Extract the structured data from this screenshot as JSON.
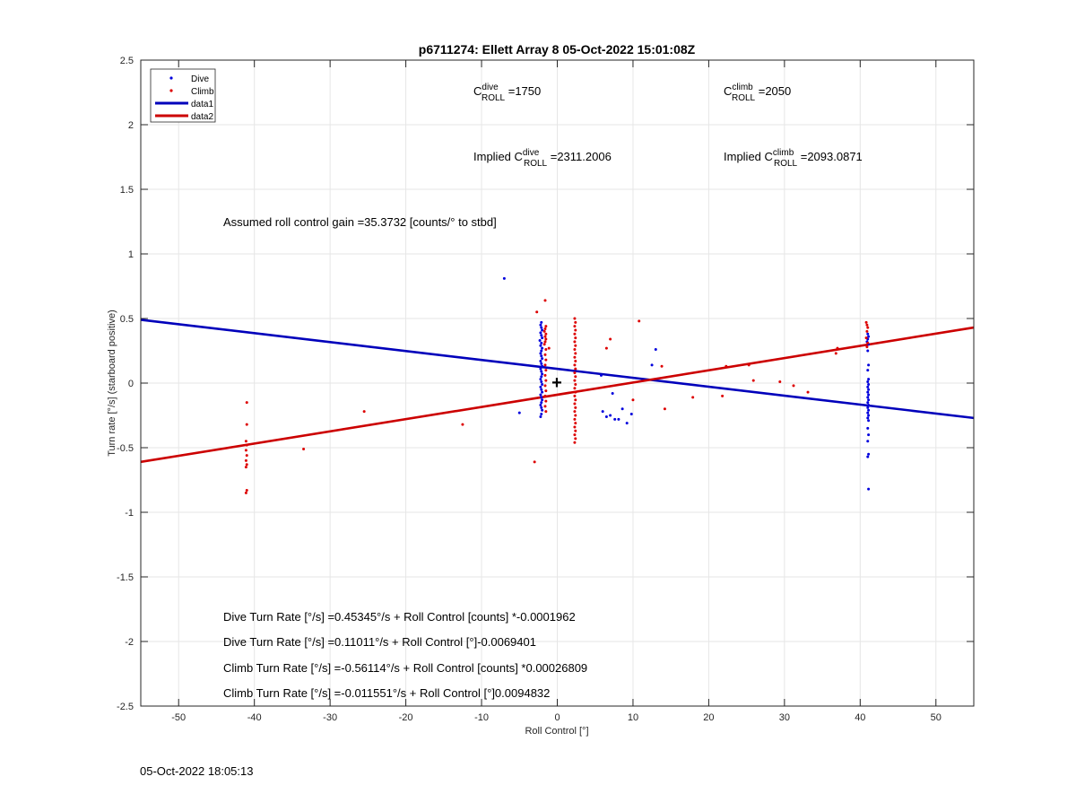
{
  "chart_data": {
    "type": "scatter",
    "title": "p6711274: Ellett Array 8 05-Oct-2022 15:01:08Z",
    "xlabel": "Roll Control [°]",
    "ylabel": "Turn rate [°/s] (starboard positive)",
    "xlim": [
      -55,
      55
    ],
    "ylim": [
      -2.5,
      2.5
    ],
    "xticks": [
      -50,
      -40,
      -30,
      -20,
      -10,
      0,
      10,
      20,
      30,
      40,
      50
    ],
    "yticks": [
      -2.5,
      -2,
      -1.5,
      -1,
      -0.5,
      0,
      0.5,
      1,
      1.5,
      2,
      2.5
    ],
    "grid": true,
    "legend_position": "top-left",
    "legend": [
      "Dive",
      "Climb",
      "data1",
      "data2"
    ],
    "series": [
      {
        "name": "Dive",
        "kind": "points",
        "color": "#0000dd",
        "points": [
          [
            -7,
            0.81
          ],
          [
            -2.1,
            0.47
          ],
          [
            -2.2,
            0.45
          ],
          [
            -2.1,
            0.43
          ],
          [
            -2.0,
            0.41
          ],
          [
            -2.2,
            0.39
          ],
          [
            -2.1,
            0.37
          ],
          [
            -2.0,
            0.35
          ],
          [
            -2.3,
            0.33
          ],
          [
            -2.1,
            0.31
          ],
          [
            -2.2,
            0.29
          ],
          [
            -2.0,
            0.27
          ],
          [
            -2.1,
            0.25
          ],
          [
            -2.2,
            0.23
          ],
          [
            -2.1,
            0.21
          ],
          [
            -2.0,
            0.19
          ],
          [
            -2.2,
            0.17
          ],
          [
            -2.1,
            0.15
          ],
          [
            -2.0,
            0.13
          ],
          [
            -2.2,
            0.11
          ],
          [
            -2.1,
            0.09
          ],
          [
            -2.0,
            0.07
          ],
          [
            -2.1,
            0.05
          ],
          [
            -2.2,
            0.03
          ],
          [
            -2.1,
            0.01
          ],
          [
            -2.0,
            -0.01
          ],
          [
            -2.2,
            -0.03
          ],
          [
            -2.1,
            -0.05
          ],
          [
            -2.0,
            -0.07
          ],
          [
            -2.2,
            -0.09
          ],
          [
            -2.1,
            -0.11
          ],
          [
            -2.0,
            -0.13
          ],
          [
            -2.1,
            -0.15
          ],
          [
            -2.2,
            -0.17
          ],
          [
            -2.1,
            -0.19
          ],
          [
            -2.0,
            -0.21
          ],
          [
            -2.1,
            -0.24
          ],
          [
            -2.2,
            -0.26
          ],
          [
            -5,
            -0.23
          ],
          [
            5.8,
            0.06
          ],
          [
            6,
            -0.22
          ],
          [
            6.5,
            -0.26
          ],
          [
            7,
            -0.25
          ],
          [
            7.3,
            -0.08
          ],
          [
            7.6,
            -0.28
          ],
          [
            8.1,
            -0.28
          ],
          [
            8.6,
            -0.2
          ],
          [
            9.2,
            -0.31
          ],
          [
            9.8,
            -0.24
          ],
          [
            12.5,
            0.14
          ],
          [
            13,
            0.26
          ],
          [
            41,
            0.38
          ],
          [
            41.1,
            0.36
          ],
          [
            41,
            0.34
          ],
          [
            40.9,
            0.32
          ],
          [
            41.1,
            0.3
          ],
          [
            41,
            0.25
          ],
          [
            41.1,
            0.14
          ],
          [
            41,
            0.1
          ],
          [
            41.1,
            0.03
          ],
          [
            41,
            0.01
          ],
          [
            41.1,
            -0.01
          ],
          [
            41,
            -0.03
          ],
          [
            41.1,
            -0.05
          ],
          [
            41,
            -0.07
          ],
          [
            41.1,
            -0.09
          ],
          [
            41,
            -0.11
          ],
          [
            41.1,
            -0.13
          ],
          [
            41,
            -0.15
          ],
          [
            41.1,
            -0.17
          ],
          [
            41,
            -0.19
          ],
          [
            41.1,
            -0.21
          ],
          [
            41,
            -0.23
          ],
          [
            41.1,
            -0.25
          ],
          [
            41,
            -0.27
          ],
          [
            41.1,
            -0.29
          ],
          [
            41,
            -0.35
          ],
          [
            41.1,
            -0.4
          ],
          [
            41,
            -0.45
          ],
          [
            41.1,
            -0.55
          ],
          [
            41,
            -0.57
          ],
          [
            41.1,
            -0.82
          ]
        ]
      },
      {
        "name": "Climb",
        "kind": "points",
        "color": "#dd0000",
        "points": [
          [
            -41,
            -0.15
          ],
          [
            -41,
            -0.32
          ],
          [
            -41.1,
            -0.45
          ],
          [
            -41,
            -0.48
          ],
          [
            -41.1,
            -0.52
          ],
          [
            -41,
            -0.56
          ],
          [
            -41.1,
            -0.6
          ],
          [
            -41,
            -0.63
          ],
          [
            -41.1,
            -0.65
          ],
          [
            -41,
            -0.83
          ],
          [
            -41.1,
            -0.85
          ],
          [
            -33.5,
            -0.51
          ],
          [
            -25.5,
            -0.22
          ],
          [
            -12.5,
            -0.32
          ],
          [
            -3,
            -0.61
          ],
          [
            -2.7,
            0.55
          ],
          [
            -1.6,
            0.64
          ],
          [
            -1.5,
            0.44
          ],
          [
            -1.6,
            0.42
          ],
          [
            -1.7,
            0.4
          ],
          [
            -1.5,
            0.38
          ],
          [
            -1.6,
            0.36
          ],
          [
            -1.5,
            0.34
          ],
          [
            -1.6,
            0.32
          ],
          [
            -1.7,
            0.3
          ],
          [
            -1.5,
            0.26
          ],
          [
            -1.6,
            0.22
          ],
          [
            -1.5,
            0.18
          ],
          [
            -1.6,
            0.14
          ],
          [
            -1.5,
            0.1
          ],
          [
            -1.6,
            0.06
          ],
          [
            -1.5,
            0.02
          ],
          [
            -1.6,
            -0.02
          ],
          [
            -1.5,
            -0.06
          ],
          [
            -1.6,
            -0.1
          ],
          [
            -1.5,
            -0.14
          ],
          [
            -1.6,
            -0.18
          ],
          [
            -1.5,
            -0.22
          ],
          [
            -1.1,
            0.27
          ],
          [
            2.3,
            0.5
          ],
          [
            2.4,
            0.47
          ],
          [
            2.3,
            0.44
          ],
          [
            2.4,
            0.41
          ],
          [
            2.3,
            0.38
          ],
          [
            2.4,
            0.35
          ],
          [
            2.3,
            0.32
          ],
          [
            2.4,
            0.29
          ],
          [
            2.3,
            0.26
          ],
          [
            2.4,
            0.23
          ],
          [
            2.3,
            0.2
          ],
          [
            2.4,
            0.17
          ],
          [
            2.3,
            0.14
          ],
          [
            2.4,
            0.11
          ],
          [
            2.3,
            0.08
          ],
          [
            2.4,
            0.05
          ],
          [
            2.3,
            0.02
          ],
          [
            2.4,
            -0.01
          ],
          [
            2.3,
            -0.04
          ],
          [
            2.4,
            -0.07
          ],
          [
            2.3,
            -0.1
          ],
          [
            2.4,
            -0.13
          ],
          [
            2.3,
            -0.16
          ],
          [
            2.4,
            -0.19
          ],
          [
            2.3,
            -0.22
          ],
          [
            2.4,
            -0.25
          ],
          [
            2.3,
            -0.28
          ],
          [
            2.4,
            -0.31
          ],
          [
            2.3,
            -0.34
          ],
          [
            2.4,
            -0.37
          ],
          [
            2.3,
            -0.4
          ],
          [
            2.4,
            -0.43
          ],
          [
            2.3,
            -0.46
          ],
          [
            6.5,
            0.27
          ],
          [
            7,
            0.34
          ],
          [
            10,
            -0.13
          ],
          [
            10.8,
            0.48
          ],
          [
            13.8,
            0.13
          ],
          [
            14.2,
            -0.2
          ],
          [
            17.9,
            -0.11
          ],
          [
            21.8,
            -0.1
          ],
          [
            22.3,
            0.13
          ],
          [
            25.3,
            0.14
          ],
          [
            25.9,
            0.02
          ],
          [
            29.4,
            0.01
          ],
          [
            31.2,
            -0.02
          ],
          [
            33.1,
            -0.07
          ],
          [
            36.8,
            0.23
          ],
          [
            37,
            0.27
          ],
          [
            40.8,
            0.47
          ],
          [
            40.9,
            0.45
          ],
          [
            41,
            0.43
          ],
          [
            40.9,
            0.4
          ],
          [
            40.8,
            0.35
          ],
          [
            41,
            0.31
          ],
          [
            40.9,
            0.28
          ]
        ]
      },
      {
        "name": "data1",
        "kind": "line",
        "color": "#0000bb",
        "points": [
          [
            -55,
            0.49
          ],
          [
            55,
            -0.27
          ]
        ]
      },
      {
        "name": "data2",
        "kind": "line",
        "color": "#cc0000",
        "points": [
          [
            -55,
            -0.61
          ],
          [
            55,
            0.43
          ]
        ]
      }
    ],
    "origin_marker": "+",
    "annotations": {
      "c_dive": {
        "base": "C",
        "sup": "dive",
        "sub": "ROLL",
        "rest": " =1750"
      },
      "c_climb": {
        "base": "C",
        "sup": "climb",
        "sub": "ROLL",
        "rest": " =2050"
      },
      "implied_dive": {
        "pre": "Implied C",
        "sup": "dive",
        "sub": "ROLL",
        "rest": " =2311.2006"
      },
      "implied_climb": {
        "pre": "Implied C",
        "sup": "climb",
        "sub": "ROLL",
        "rest": " =2093.0871"
      },
      "gain": "Assumed roll control gain =35.3732 [counts/° to stbd]",
      "eq1": "Dive Turn Rate [°/s] =0.45345°/s + Roll Control [counts] *-0.0001962",
      "eq2": "Dive Turn Rate [°/s] =0.11011°/s + Roll Control [°]-0.0069401",
      "eq3": "Climb Turn Rate [°/s] =-0.56114°/s + Roll Control [counts] *0.00026809",
      "eq4": "Climb Turn Rate [°/s] =-0.011551°/s + Roll Control [°]0.0094832"
    }
  },
  "footer": {
    "timestamp": "05-Oct-2022 18:05:13"
  }
}
